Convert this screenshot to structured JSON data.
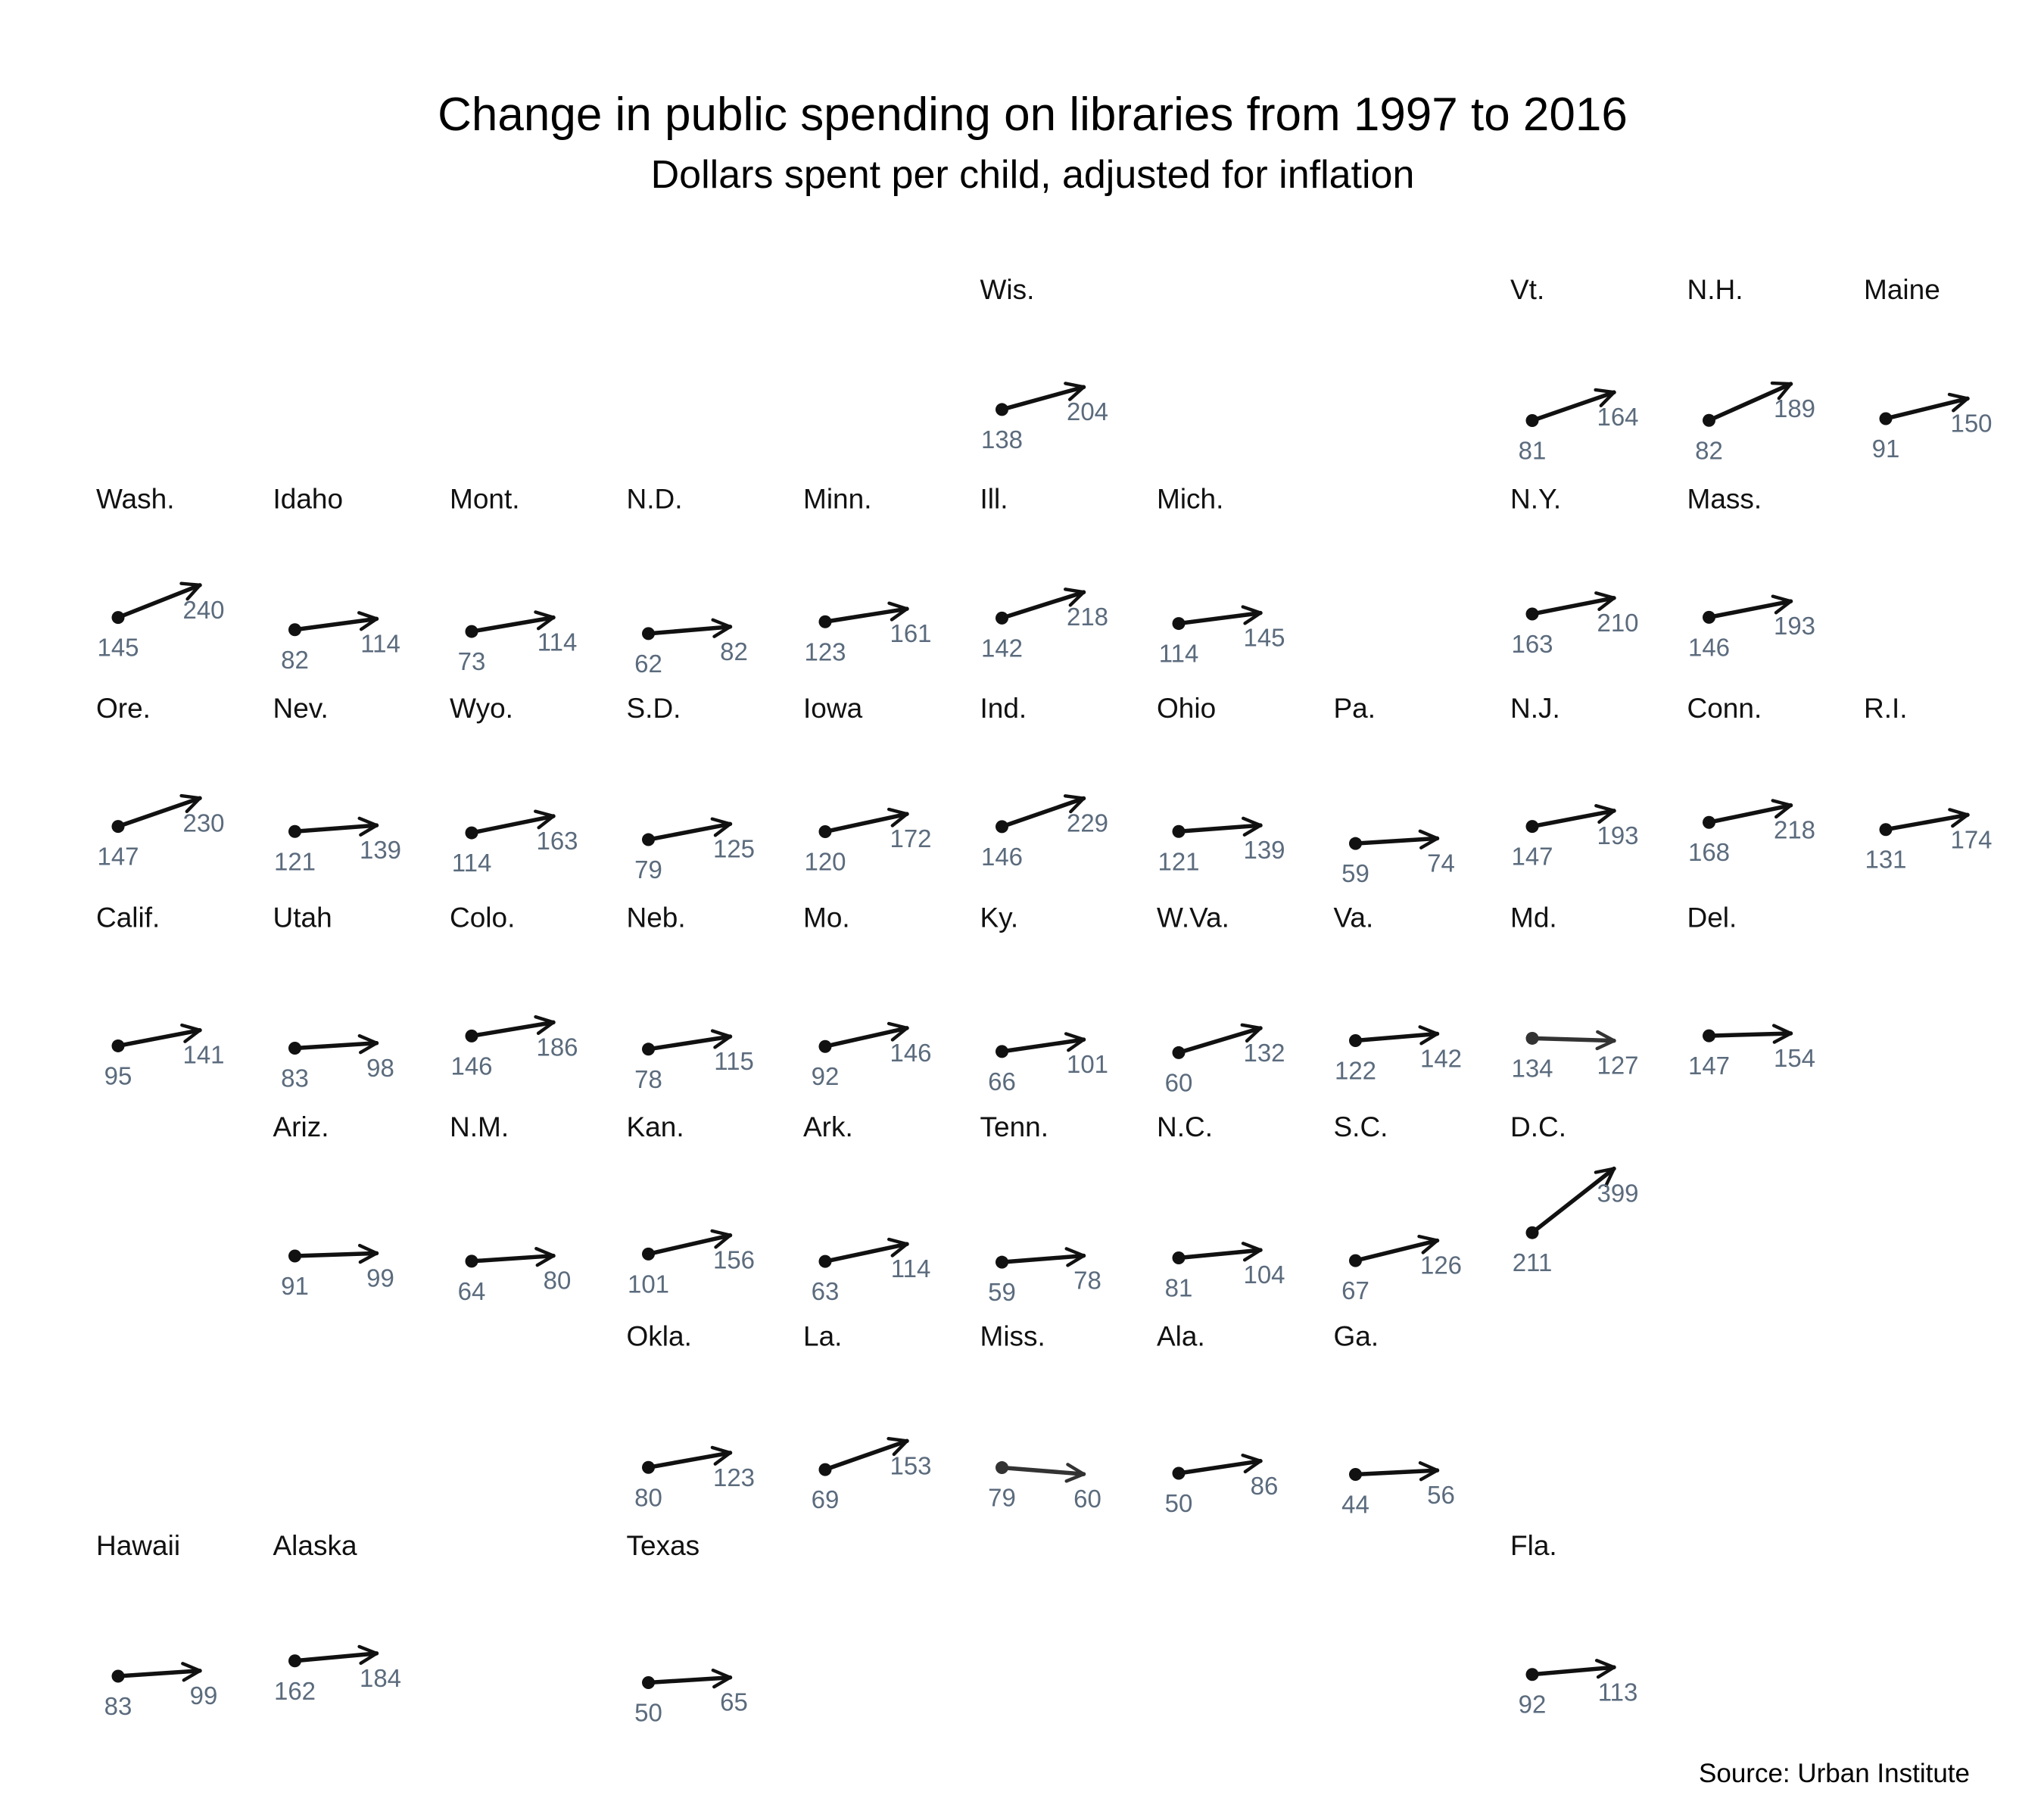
{
  "chart_data": {
    "type": "tile-grid-arrow",
    "title": "Change in public spending on libraries from 1997 to 2016",
    "subtitle": "Dollars spent per child, adjusted for inflation",
    "source": "Source: Urban Institute",
    "colors": {
      "increase": "#111111",
      "decrease": "#333333",
      "value_label": "#5b6b7d"
    },
    "states": [
      {
        "label": "Wis.",
        "row": 0,
        "col": 5,
        "v1997": 138,
        "v2016": 204
      },
      {
        "label": "Vt.",
        "row": 0,
        "col": 8,
        "v1997": 81,
        "v2016": 164
      },
      {
        "label": "N.H.",
        "row": 0,
        "col": 9,
        "v1997": 82,
        "v2016": 189
      },
      {
        "label": "Maine",
        "row": 0,
        "col": 10,
        "v1997": 91,
        "v2016": 150
      },
      {
        "label": "Wash.",
        "row": 1,
        "col": 0,
        "v1997": 145,
        "v2016": 240
      },
      {
        "label": "Idaho",
        "row": 1,
        "col": 1,
        "v1997": 82,
        "v2016": 114
      },
      {
        "label": "Mont.",
        "row": 1,
        "col": 2,
        "v1997": 73,
        "v2016": 114
      },
      {
        "label": "N.D.",
        "row": 1,
        "col": 3,
        "v1997": 62,
        "v2016": 82
      },
      {
        "label": "Minn.",
        "row": 1,
        "col": 4,
        "v1997": 123,
        "v2016": 161
      },
      {
        "label": "Ill.",
        "row": 1,
        "col": 5,
        "v1997": 142,
        "v2016": 218
      },
      {
        "label": "Mich.",
        "row": 1,
        "col": 6,
        "v1997": 114,
        "v2016": 145
      },
      {
        "label": "N.Y.",
        "row": 1,
        "col": 8,
        "v1997": 163,
        "v2016": 210
      },
      {
        "label": "Mass.",
        "row": 1,
        "col": 9,
        "v1997": 146,
        "v2016": 193
      },
      {
        "label": "Ore.",
        "row": 2,
        "col": 0,
        "v1997": 147,
        "v2016": 230
      },
      {
        "label": "Nev.",
        "row": 2,
        "col": 1,
        "v1997": 121,
        "v2016": 139
      },
      {
        "label": "Wyo.",
        "row": 2,
        "col": 2,
        "v1997": 114,
        "v2016": 163
      },
      {
        "label": "S.D.",
        "row": 2,
        "col": 3,
        "v1997": 79,
        "v2016": 125
      },
      {
        "label": "Iowa",
        "row": 2,
        "col": 4,
        "v1997": 120,
        "v2016": 172
      },
      {
        "label": "Ind.",
        "row": 2,
        "col": 5,
        "v1997": 146,
        "v2016": 229
      },
      {
        "label": "Ohio",
        "row": 2,
        "col": 6,
        "v1997": 121,
        "v2016": 139
      },
      {
        "label": "Pa.",
        "row": 2,
        "col": 7,
        "v1997": 59,
        "v2016": 74
      },
      {
        "label": "N.J.",
        "row": 2,
        "col": 8,
        "v1997": 147,
        "v2016": 193
      },
      {
        "label": "Conn.",
        "row": 2,
        "col": 9,
        "v1997": 168,
        "v2016": 218
      },
      {
        "label": "R.I.",
        "row": 2,
        "col": 10,
        "v1997": 131,
        "v2016": 174
      },
      {
        "label": "Calif.",
        "row": 3,
        "col": 0,
        "v1997": 95,
        "v2016": 141
      },
      {
        "label": "Utah",
        "row": 3,
        "col": 1,
        "v1997": 83,
        "v2016": 98
      },
      {
        "label": "Colo.",
        "row": 3,
        "col": 2,
        "v1997": 146,
        "v2016": 186
      },
      {
        "label": "Neb.",
        "row": 3,
        "col": 3,
        "v1997": 78,
        "v2016": 115
      },
      {
        "label": "Mo.",
        "row": 3,
        "col": 4,
        "v1997": 92,
        "v2016": 146
      },
      {
        "label": "Ky.",
        "row": 3,
        "col": 5,
        "v1997": 66,
        "v2016": 101
      },
      {
        "label": "W.Va.",
        "row": 3,
        "col": 6,
        "v1997": 60,
        "v2016": 132
      },
      {
        "label": "Va.",
        "row": 3,
        "col": 7,
        "v1997": 122,
        "v2016": 142
      },
      {
        "label": "Md.",
        "row": 3,
        "col": 8,
        "v1997": 134,
        "v2016": 127
      },
      {
        "label": "Del.",
        "row": 3,
        "col": 9,
        "v1997": 147,
        "v2016": 154
      },
      {
        "label": "Ariz.",
        "row": 4,
        "col": 1,
        "v1997": 91,
        "v2016": 99
      },
      {
        "label": "N.M.",
        "row": 4,
        "col": 2,
        "v1997": 64,
        "v2016": 80
      },
      {
        "label": "Kan.",
        "row": 4,
        "col": 3,
        "v1997": 101,
        "v2016": 156
      },
      {
        "label": "Ark.",
        "row": 4,
        "col": 4,
        "v1997": 63,
        "v2016": 114
      },
      {
        "label": "Tenn.",
        "row": 4,
        "col": 5,
        "v1997": 59,
        "v2016": 78
      },
      {
        "label": "N.C.",
        "row": 4,
        "col": 6,
        "v1997": 81,
        "v2016": 104
      },
      {
        "label": "S.C.",
        "row": 4,
        "col": 7,
        "v1997": 67,
        "v2016": 126
      },
      {
        "label": "D.C.",
        "row": 4,
        "col": 8,
        "v1997": 211,
        "v2016": 399
      },
      {
        "label": "Okla.",
        "row": 5,
        "col": 3,
        "v1997": 80,
        "v2016": 123
      },
      {
        "label": "La.",
        "row": 5,
        "col": 4,
        "v1997": 69,
        "v2016": 153
      },
      {
        "label": "Miss.",
        "row": 5,
        "col": 5,
        "v1997": 79,
        "v2016": 60
      },
      {
        "label": "Ala.",
        "row": 5,
        "col": 6,
        "v1997": 50,
        "v2016": 86
      },
      {
        "label": "Ga.",
        "row": 5,
        "col": 7,
        "v1997": 44,
        "v2016": 56
      },
      {
        "label": "Hawaii",
        "row": 6,
        "col": 0,
        "v1997": 83,
        "v2016": 99
      },
      {
        "label": "Alaska",
        "row": 6,
        "col": 1,
        "v1997": 162,
        "v2016": 184
      },
      {
        "label": "Texas",
        "row": 6,
        "col": 3,
        "v1997": 50,
        "v2016": 65
      },
      {
        "label": "Fla.",
        "row": 6,
        "col": 8,
        "v1997": 92,
        "v2016": 113
      }
    ]
  }
}
